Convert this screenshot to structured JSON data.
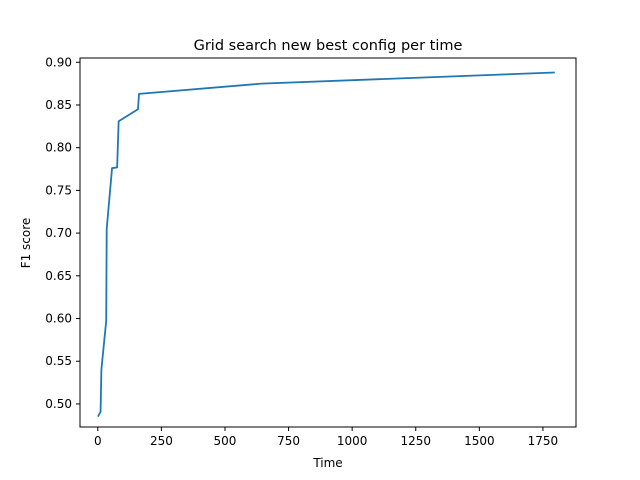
{
  "chart_data": {
    "type": "line",
    "title": "Grid search new best config per time",
    "xlabel": "Time",
    "ylabel": "F1 score",
    "xlim": [
      -70,
      1880
    ],
    "ylim": [
      0.473,
      0.905
    ],
    "x_ticks": [
      0,
      250,
      500,
      750,
      1000,
      1250,
      1500,
      1750
    ],
    "y_ticks": [
      0.5,
      0.55,
      0.6,
      0.65,
      0.7,
      0.75,
      0.8,
      0.85,
      0.9
    ],
    "x_tick_labels": [
      "0",
      "250",
      "500",
      "750",
      "1000",
      "1250",
      "1500",
      "1750"
    ],
    "y_tick_labels": [
      "0.50",
      "0.55",
      "0.60",
      "0.65",
      "0.70",
      "0.75",
      "0.80",
      "0.85",
      "0.90"
    ],
    "grid": false,
    "series": [
      {
        "color": "#1f77b4",
        "points": [
          [
            2,
            0.486
          ],
          [
            11,
            0.491
          ],
          [
            14,
            0.54
          ],
          [
            33,
            0.597
          ],
          [
            35,
            0.705
          ],
          [
            56,
            0.776
          ],
          [
            76,
            0.777
          ],
          [
            82,
            0.831
          ],
          [
            158,
            0.845
          ],
          [
            162,
            0.863
          ],
          [
            644,
            0.875
          ],
          [
            1793,
            0.888
          ]
        ]
      }
    ]
  }
}
